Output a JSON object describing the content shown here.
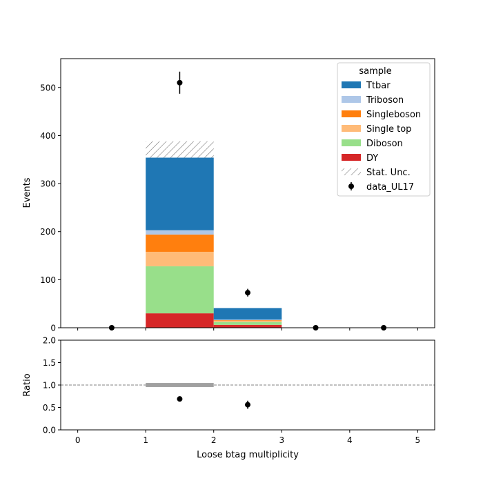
{
  "chart_data": [
    {
      "type": "bar",
      "panel": "main",
      "stacked": true,
      "x_edges": [
        0,
        1,
        2,
        3,
        4,
        5
      ],
      "xlim": [
        -0.25,
        5.25
      ],
      "ylim": [
        0,
        560
      ],
      "ylabel": "Events",
      "yticks": [
        0,
        100,
        200,
        300,
        400,
        500
      ],
      "series": [
        {
          "name": "DY",
          "color": "#d62728",
          "values": [
            0,
            30,
            6,
            0,
            0
          ]
        },
        {
          "name": "Diboson",
          "color": "#98df8a",
          "values": [
            0,
            98,
            6,
            0,
            0
          ]
        },
        {
          "name": "Single top",
          "color": "#ffbb78",
          "values": [
            0,
            30,
            3,
            0,
            0
          ]
        },
        {
          "name": "Singleboson",
          "color": "#ff7f0e",
          "values": [
            0,
            36,
            1,
            0,
            0
          ]
        },
        {
          "name": "Triboson",
          "color": "#aec7e8",
          "values": [
            0,
            9,
            1,
            0,
            0
          ]
        },
        {
          "name": "Ttbar",
          "color": "#1f77b4",
          "values": [
            0,
            151,
            24,
            0,
            0
          ]
        }
      ],
      "stat_unc": {
        "name": "Stat. Unc.",
        "low": [
          0,
          354,
          41,
          0,
          0
        ],
        "high": [
          0,
          388,
          41,
          0,
          0
        ]
      },
      "data": {
        "name": "data_UL17",
        "x": [
          0.5,
          1.5,
          2.5,
          3.5,
          4.5
        ],
        "y": [
          0,
          510,
          73,
          0,
          0
        ],
        "err": [
          0,
          23,
          8,
          0,
          0
        ]
      },
      "legend": {
        "title": "sample",
        "placement": "top-right",
        "entries": [
          "Ttbar",
          "Triboson",
          "Singleboson",
          "Single top",
          "Diboson",
          "DY",
          "Stat. Unc.",
          "data_UL17"
        ]
      }
    },
    {
      "type": "scatter",
      "panel": "ratio",
      "xlabel": "Loose btag multiplicity",
      "ylabel": "Ratio",
      "xlim": [
        -0.25,
        5.25
      ],
      "ylim": [
        0,
        2
      ],
      "xticks": [
        0,
        1,
        2,
        3,
        4,
        5
      ],
      "yticks": [
        "0.0",
        "0.5",
        "1.0",
        "1.5",
        "2.0"
      ],
      "reference_line": 1.0,
      "unc_band": {
        "x_edges": [
          1,
          2
        ],
        "low": 0.955,
        "high": 1.045
      },
      "points": {
        "x": [
          1.5,
          2.5
        ],
        "y": [
          0.69,
          0.56
        ],
        "err": [
          0.04,
          0.09
        ]
      }
    }
  ],
  "colors": {
    "data": "#000000",
    "hatch": "#777777",
    "reference_line": "#808080",
    "unc_band": "#a0a0a0"
  }
}
